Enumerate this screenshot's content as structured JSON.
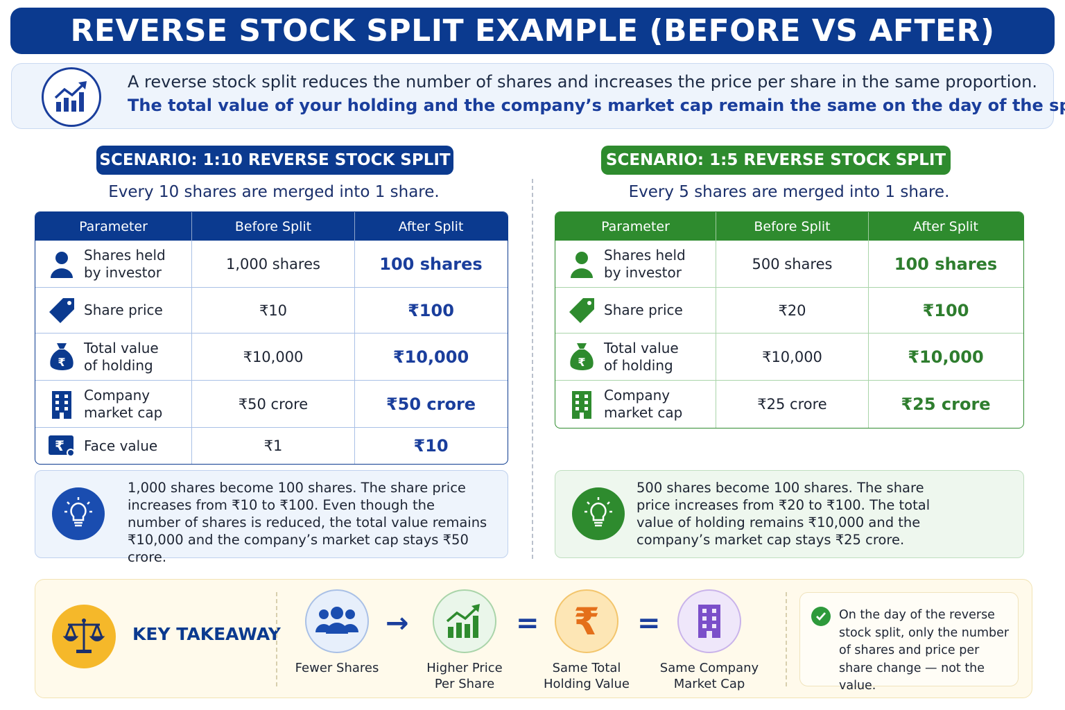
{
  "header": {
    "title": "REVERSE STOCK SPLIT EXAMPLE (BEFORE VS AFTER)"
  },
  "intro": {
    "icon": "chart-up-icon",
    "line1": "A reverse stock split reduces the number of shares and increases the price per share in the same proportion.",
    "line2": "The total value of your holding and the company’s market cap remain the same on the day of the split."
  },
  "columns": [
    "Parameter",
    "Before Split",
    "After Split"
  ],
  "scenario_a": {
    "title": "SCENARIO: 1:10 REVERSE STOCK SPLIT",
    "subtitle": "Every 10 shares are merged into 1 share.",
    "color": "#0b3a8f",
    "rows": [
      {
        "label": "Shares held\nby investor",
        "before": "1,000 shares",
        "after": "100 shares",
        "icon": "person-icon"
      },
      {
        "label": "Share price",
        "before": "₹10",
        "after": "₹100",
        "icon": "price-tag-icon"
      },
      {
        "label": "Total value\nof holding",
        "before": "₹10,000",
        "after": "₹10,000",
        "icon": "money-bag-icon"
      },
      {
        "label": "Company\nmarket cap",
        "before": "₹50 crore",
        "after": "₹50 crore",
        "icon": "building-icon"
      },
      {
        "label": "Face value",
        "before": "₹1",
        "after": "₹10",
        "icon": "certificate-icon"
      }
    ],
    "note": "1,000 shares become 100 shares. The share price increases from ₹10 to ₹100. Even though the number of shares is reduced, the total value remains ₹10,000 and the company’s market cap stays  ₹50 crore."
  },
  "scenario_b": {
    "title": "SCENARIO: 1:5 REVERSE STOCK SPLIT",
    "subtitle": "Every 5 shares are merged into 1 share.",
    "color": "#2e8b2e",
    "rows": [
      {
        "label": "Shares held\nby investor",
        "before": "500 shares",
        "after": "100 shares",
        "icon": "person-icon"
      },
      {
        "label": "Share price",
        "before": "₹20",
        "after": "₹100",
        "icon": "price-tag-icon"
      },
      {
        "label": "Total value\nof holding",
        "before": "₹10,000",
        "after": "₹10,000",
        "icon": "money-bag-icon"
      },
      {
        "label": "Company\nmarket cap",
        "before": "₹25 crore",
        "after": "₹25 crore",
        "icon": "building-icon"
      }
    ],
    "note": "500 shares become 100 shares. The share price increases from ₹20 to ₹100. The total value of holding remains ₹10,000 and the company’s market cap stays ₹25 crore."
  },
  "takeaway": {
    "title": "KEY TAKEAWAY",
    "icon": "scales-icon",
    "items": [
      {
        "label": "Fewer Shares",
        "icon": "group-icon"
      },
      {
        "label": "Higher Price\nPer Share",
        "icon": "growth-chart-icon"
      },
      {
        "label": "Same Total\nHolding Value",
        "icon": "rupee-icon"
      },
      {
        "label": "Same Company\nMarket Cap",
        "icon": "building-icon"
      }
    ],
    "operators": [
      "→",
      "=",
      "="
    ],
    "summary": "On the day of the reverse stock split, only the number of shares and price per share change — not the value."
  }
}
